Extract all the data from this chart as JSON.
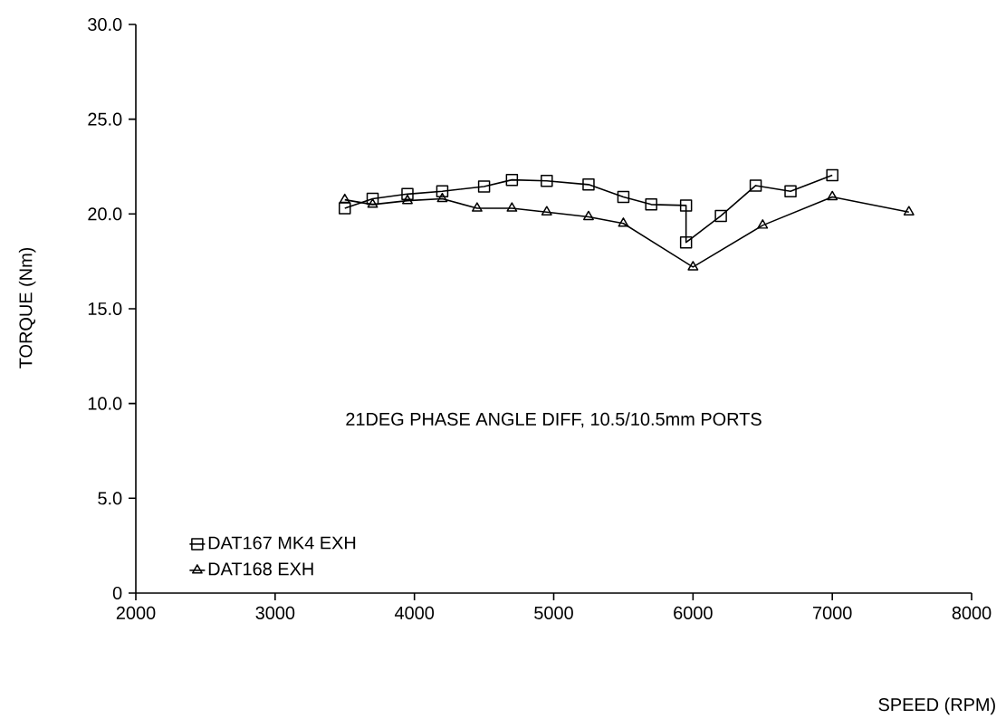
{
  "chart_data": {
    "type": "line",
    "xlabel": "SPEED (RPM)",
    "ylabel": "TORQUE (Nm)",
    "annotations": [
      "21DEG PHASE ANGLE DIFF, 10.5/10.5mm PORTS"
    ],
    "xlim": [
      2000,
      8000
    ],
    "xticks": [
      2000,
      3000,
      4000,
      5000,
      6000,
      7000,
      8000
    ],
    "ylim": [
      0,
      30
    ],
    "yticks": [
      {
        "value": 0,
        "label": "0"
      },
      {
        "value": 5,
        "label": "5.0"
      },
      {
        "value": 10,
        "label": "10.0"
      },
      {
        "value": 15,
        "label": "15.0"
      },
      {
        "value": 20,
        "label": "20.0"
      },
      {
        "value": 25,
        "label": "25.0"
      },
      {
        "value": 30,
        "label": "30.0"
      }
    ],
    "grid": false,
    "legend": "bottom left",
    "line_style": "solid",
    "series": [
      {
        "name": "DAT167 MK4 EXH",
        "color": "#000000",
        "marker": "square",
        "x": [
          3500,
          3700,
          3950,
          4200,
          4500,
          4700,
          4950,
          5250,
          5500,
          5700,
          5950,
          5950,
          6200,
          6450,
          6700,
          7000
        ],
        "values": [
          20.3,
          20.8,
          21.05,
          21.2,
          21.45,
          21.8,
          21.75,
          21.55,
          20.9,
          20.5,
          20.45,
          18.5,
          19.9,
          21.5,
          21.2,
          22.05
        ]
      },
      {
        "name": "DAT168 EXH",
        "color": "#000000",
        "marker": "triangle",
        "x": [
          3500,
          3700,
          3950,
          4200,
          4450,
          4700,
          4950,
          5250,
          5500,
          6000,
          6500,
          7000,
          7550
        ],
        "values": [
          20.75,
          20.5,
          20.7,
          20.8,
          20.3,
          20.3,
          20.1,
          19.85,
          19.5,
          17.2,
          19.4,
          20.9,
          20.1
        ]
      }
    ]
  }
}
